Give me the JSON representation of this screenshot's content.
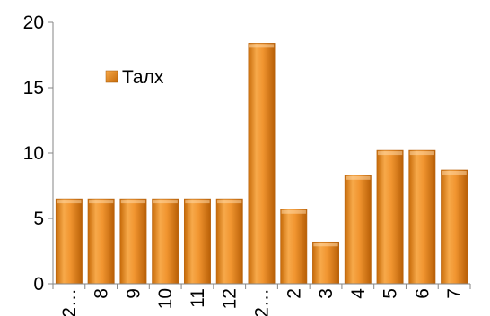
{
  "chart_data": {
    "type": "bar",
    "title": "",
    "xlabel": "",
    "ylabel": "",
    "categories": [
      "2…",
      "8",
      "9",
      "10",
      "11",
      "12",
      "2…",
      "2",
      "3",
      "4",
      "5",
      "6",
      "7"
    ],
    "series": [
      {
        "name": "Талх",
        "values": [
          6.5,
          6.5,
          6.5,
          6.5,
          6.5,
          6.5,
          18.4,
          5.7,
          3.2,
          8.3,
          10.2,
          10.2,
          8.7
        ],
        "color": "#E8861A"
      }
    ],
    "ylim": [
      0,
      20
    ],
    "yticks": [
      "0",
      "5",
      "10",
      "15",
      "20"
    ],
    "grid": false,
    "legend_position": "upper-left-inside"
  }
}
